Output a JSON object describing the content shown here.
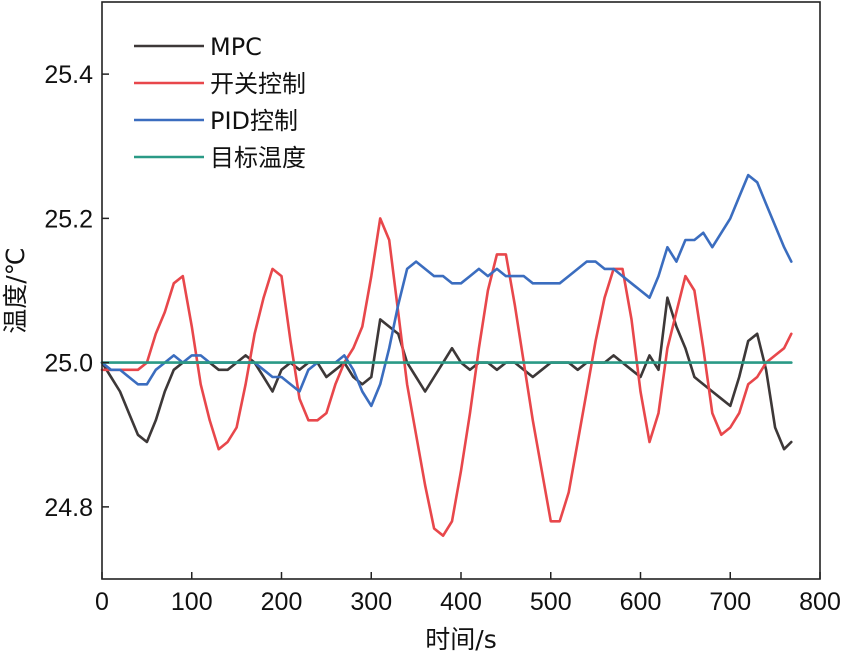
{
  "chart_data": {
    "type": "line",
    "title": "",
    "xlabel": "时间/s",
    "ylabel": "温度/℃",
    "xlim": [
      0,
      800
    ],
    "ylim": [
      24.7,
      25.5
    ],
    "xticks": [
      0,
      100,
      200,
      300,
      400,
      500,
      600,
      700,
      800
    ],
    "yticks": [
      24.8,
      25.0,
      25.2,
      25.4
    ],
    "xtick_labels": [
      "0",
      "100",
      "200",
      "300",
      "400",
      "500",
      "600",
      "700",
      "800"
    ],
    "ytick_labels": [
      "24.8",
      "25.0",
      "25.2",
      "25.4"
    ],
    "grid": false,
    "legend_position": "top-left",
    "series": [
      {
        "name": "MPC",
        "color": "#3d3838",
        "x": [
          0,
          10,
          20,
          30,
          40,
          50,
          60,
          70,
          80,
          90,
          100,
          110,
          120,
          130,
          140,
          150,
          160,
          170,
          180,
          190,
          200,
          210,
          220,
          230,
          240,
          250,
          260,
          270,
          280,
          290,
          300,
          310,
          320,
          330,
          340,
          350,
          360,
          370,
          380,
          390,
          400,
          410,
          420,
          430,
          440,
          450,
          460,
          470,
          480,
          490,
          500,
          510,
          520,
          530,
          540,
          550,
          560,
          570,
          580,
          590,
          600,
          610,
          620,
          630,
          640,
          650,
          660,
          670,
          680,
          690,
          700,
          710,
          720,
          730,
          740,
          750,
          760,
          768
        ],
        "y": [
          25.0,
          24.98,
          24.96,
          24.93,
          24.9,
          24.89,
          24.92,
          24.96,
          24.99,
          25.0,
          25.0,
          25.0,
          25.0,
          24.99,
          24.99,
          25.0,
          25.01,
          25.0,
          24.98,
          24.96,
          24.99,
          25.0,
          24.99,
          25.0,
          25.0,
          24.98,
          24.99,
          25.0,
          24.98,
          24.97,
          24.98,
          25.06,
          25.05,
          25.04,
          25.0,
          24.98,
          24.96,
          24.98,
          25.0,
          25.02,
          25.0,
          24.99,
          25.0,
          25.0,
          24.99,
          25.0,
          25.0,
          24.99,
          24.98,
          24.99,
          25.0,
          25.0,
          25.0,
          24.99,
          25.0,
          25.0,
          25.0,
          25.01,
          25.0,
          24.99,
          24.98,
          25.01,
          24.99,
          25.09,
          25.05,
          25.02,
          24.98,
          24.97,
          24.96,
          24.95,
          24.94,
          24.98,
          25.03,
          25.04,
          24.99,
          24.91,
          24.88,
          24.89
        ]
      },
      {
        "name": "开关控制",
        "color": "#e8474b",
        "x": [
          0,
          10,
          20,
          30,
          40,
          50,
          60,
          70,
          80,
          90,
          100,
          110,
          120,
          130,
          140,
          150,
          160,
          170,
          180,
          190,
          200,
          210,
          220,
          230,
          240,
          250,
          260,
          270,
          280,
          290,
          300,
          310,
          320,
          330,
          340,
          350,
          360,
          370,
          380,
          390,
          400,
          410,
          420,
          430,
          440,
          450,
          460,
          470,
          480,
          490,
          500,
          510,
          520,
          530,
          540,
          550,
          560,
          570,
          580,
          590,
          600,
          610,
          620,
          630,
          640,
          650,
          660,
          670,
          680,
          690,
          700,
          710,
          720,
          730,
          740,
          750,
          760,
          768
        ],
        "y": [
          24.99,
          24.99,
          24.99,
          24.99,
          24.99,
          25.0,
          25.04,
          25.07,
          25.11,
          25.12,
          25.05,
          24.97,
          24.92,
          24.88,
          24.89,
          24.91,
          24.97,
          25.04,
          25.09,
          25.13,
          25.12,
          25.03,
          24.95,
          24.92,
          24.92,
          24.93,
          24.97,
          25.0,
          25.02,
          25.05,
          25.12,
          25.2,
          25.17,
          25.07,
          24.97,
          24.9,
          24.83,
          24.77,
          24.76,
          24.78,
          24.85,
          24.93,
          25.02,
          25.1,
          25.15,
          25.15,
          25.08,
          25.0,
          24.92,
          24.85,
          24.78,
          24.78,
          24.82,
          24.89,
          24.96,
          25.03,
          25.09,
          25.13,
          25.13,
          25.06,
          24.96,
          24.89,
          24.93,
          25.02,
          25.07,
          25.12,
          25.1,
          25.02,
          24.93,
          24.9,
          24.91,
          24.93,
          24.97,
          24.98,
          25.0,
          25.01,
          25.02,
          25.04
        ]
      },
      {
        "name": "PID控制",
        "color": "#3b6dbf",
        "x": [
          0,
          10,
          20,
          30,
          40,
          50,
          60,
          70,
          80,
          90,
          100,
          110,
          120,
          130,
          140,
          150,
          160,
          170,
          180,
          190,
          200,
          210,
          220,
          230,
          240,
          250,
          260,
          270,
          280,
          290,
          300,
          310,
          320,
          330,
          340,
          350,
          360,
          370,
          380,
          390,
          400,
          410,
          420,
          430,
          440,
          450,
          460,
          470,
          480,
          490,
          500,
          510,
          520,
          530,
          540,
          550,
          560,
          570,
          580,
          590,
          600,
          610,
          620,
          630,
          640,
          650,
          660,
          670,
          680,
          690,
          700,
          710,
          720,
          730,
          740,
          750,
          760,
          768
        ],
        "y": [
          25.0,
          24.99,
          24.99,
          24.98,
          24.97,
          24.97,
          24.99,
          25.0,
          25.01,
          25.0,
          25.01,
          25.01,
          25.0,
          25.0,
          25.0,
          25.0,
          25.0,
          25.0,
          24.99,
          24.98,
          24.98,
          24.97,
          24.96,
          24.99,
          25.0,
          25.0,
          25.0,
          25.01,
          24.99,
          24.96,
          24.94,
          24.97,
          25.02,
          25.08,
          25.13,
          25.14,
          25.13,
          25.12,
          25.12,
          25.11,
          25.11,
          25.12,
          25.13,
          25.12,
          25.13,
          25.12,
          25.12,
          25.12,
          25.11,
          25.11,
          25.11,
          25.11,
          25.12,
          25.13,
          25.14,
          25.14,
          25.13,
          25.13,
          25.12,
          25.11,
          25.1,
          25.09,
          25.12,
          25.16,
          25.14,
          25.17,
          25.17,
          25.18,
          25.16,
          25.18,
          25.2,
          25.23,
          25.26,
          25.25,
          25.22,
          25.19,
          25.16,
          25.14
        ]
      },
      {
        "name": "目标温度",
        "color": "#2a9a86",
        "x": [
          0,
          768
        ],
        "y": [
          25.0,
          25.0
        ]
      }
    ]
  }
}
